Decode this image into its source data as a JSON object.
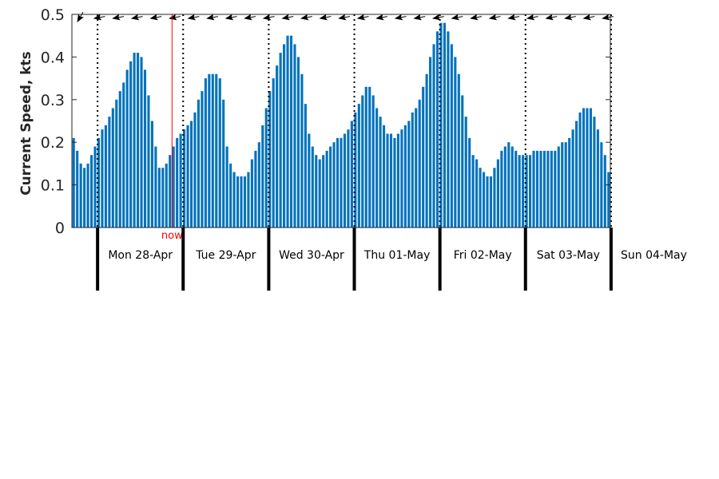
{
  "chart_data": {
    "type": "bar",
    "title": "",
    "ylabel": "Current Speed, kts",
    "xlabel": "",
    "ylim": [
      0,
      0.5
    ],
    "yticks": [
      0,
      0.1,
      0.2,
      0.3,
      0.4,
      0.5
    ],
    "ytick_labels": [
      "0",
      "0.1",
      "0.2",
      "0.3",
      "0.4",
      "0.5"
    ],
    "grid": false,
    "bar_color": "#0072BD",
    "hours_per_bar": 1,
    "start_offset_days": -0.3,
    "days": [
      "Mon 28-Apr",
      "Tue 29-Apr",
      "Wed 30-Apr",
      "Thu 01-May",
      "Fri 02-May",
      "Sat 03-May",
      "Sun 04-May"
    ],
    "now_marker": {
      "label": "now",
      "day_offset": 0.87,
      "color": "#ff0000"
    },
    "values": [
      0.21,
      0.18,
      0.15,
      0.14,
      0.15,
      0.17,
      0.19,
      0.21,
      0.23,
      0.24,
      0.26,
      0.28,
      0.3,
      0.32,
      0.34,
      0.37,
      0.39,
      0.41,
      0.41,
      0.4,
      0.37,
      0.31,
      0.25,
      0.19,
      0.14,
      0.14,
      0.15,
      0.17,
      0.19,
      0.21,
      0.22,
      0.23,
      0.24,
      0.25,
      0.27,
      0.3,
      0.32,
      0.35,
      0.36,
      0.36,
      0.36,
      0.35,
      0.3,
      0.19,
      0.15,
      0.13,
      0.12,
      0.12,
      0.12,
      0.13,
      0.16,
      0.18,
      0.2,
      0.24,
      0.28,
      0.32,
      0.35,
      0.38,
      0.41,
      0.43,
      0.45,
      0.45,
      0.43,
      0.4,
      0.36,
      0.29,
      0.22,
      0.19,
      0.17,
      0.16,
      0.17,
      0.18,
      0.19,
      0.2,
      0.21,
      0.21,
      0.22,
      0.23,
      0.25,
      0.27,
      0.29,
      0.31,
      0.33,
      0.33,
      0.31,
      0.28,
      0.26,
      0.24,
      0.22,
      0.22,
      0.21,
      0.22,
      0.23,
      0.24,
      0.25,
      0.27,
      0.28,
      0.3,
      0.33,
      0.36,
      0.4,
      0.43,
      0.46,
      0.48,
      0.48,
      0.46,
      0.43,
      0.4,
      0.36,
      0.31,
      0.26,
      0.21,
      0.17,
      0.16,
      0.14,
      0.13,
      0.12,
      0.12,
      0.14,
      0.16,
      0.18,
      0.19,
      0.2,
      0.19,
      0.18,
      0.17,
      0.17,
      0.17,
      0.17,
      0.18,
      0.18,
      0.18,
      0.18,
      0.18,
      0.18,
      0.18,
      0.19,
      0.2,
      0.2,
      0.21,
      0.23,
      0.25,
      0.27,
      0.28,
      0.28,
      0.28,
      0.26,
      0.23,
      0.2,
      0.17,
      0.13
    ],
    "direction_arrows": {
      "count": 29,
      "symbol": "arrow-head-icon"
    }
  }
}
